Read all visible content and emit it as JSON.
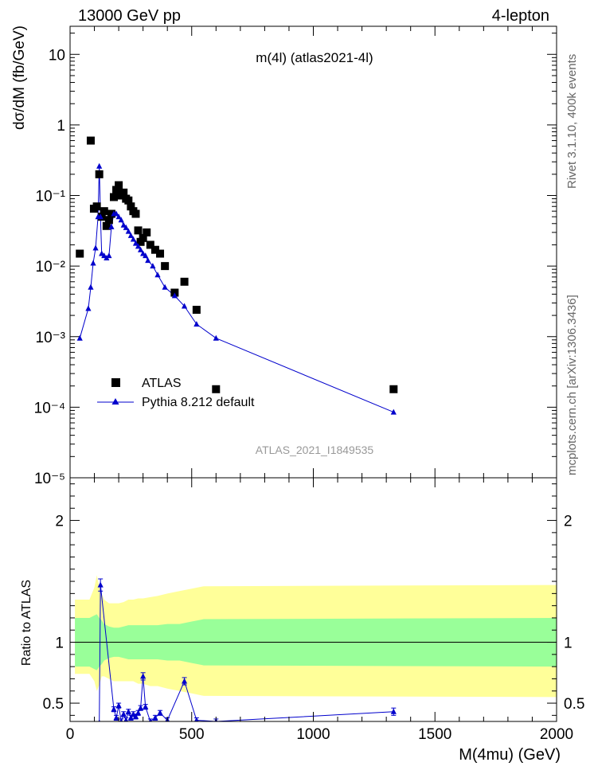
{
  "header": {
    "left": "13000 GeV pp",
    "right": "4-lepton",
    "side_top": "Rivet 3.1.10,  400k events",
    "side_bottom": "mcplots.cern.ch [arXiv:1306.3436]"
  },
  "colors": {
    "data": "#000000",
    "mc": "#0000cc",
    "band_inner": "#99ff99",
    "band_outer": "#ffff99"
  },
  "chart_data": [
    {
      "type": "scatter",
      "title": "m(4l) (atlas2021-4l)",
      "watermark": "ATLAS_2021_I1849535",
      "ylabel": "dσ/dM (fb/GeV)",
      "xlim": [
        0,
        2000
      ],
      "ylim": [
        1e-05,
        25
      ],
      "yscale": "log",
      "yticks": [
        {
          "v": 10,
          "label": "10"
        },
        {
          "v": 1,
          "label": "1"
        },
        {
          "v": 0.1,
          "label": "10⁻¹"
        },
        {
          "v": 0.01,
          "label": "10⁻²"
        },
        {
          "v": 0.001,
          "label": "10⁻³"
        },
        {
          "v": 0.0001,
          "label": "10⁻⁴"
        },
        {
          "v": 1e-05,
          "label": "10⁻⁵"
        }
      ],
      "legend": [
        "ATLAS",
        "Pythia 8.212 default"
      ],
      "legend_position": "bottom-left",
      "series": [
        {
          "name": "ATLAS",
          "marker": "square",
          "x": [
            40,
            85,
            98,
            110,
            120,
            130,
            140,
            150,
            160,
            170,
            180,
            190,
            200,
            210,
            220,
            230,
            240,
            250,
            260,
            270,
            280,
            290,
            300,
            315,
            330,
            350,
            370,
            390,
            430,
            470,
            520,
            600,
            1330
          ],
          "y": [
            0.015,
            0.6,
            0.065,
            0.07,
            0.2,
            0.05,
            0.06,
            0.037,
            0.045,
            0.055,
            0.095,
            0.12,
            0.14,
            0.1,
            0.11,
            0.09,
            0.085,
            0.07,
            0.06,
            0.055,
            0.032,
            0.022,
            0.025,
            0.03,
            0.02,
            0.017,
            0.015,
            0.01,
            0.0042,
            0.006,
            0.0024,
            0.00018,
            0.00018
          ]
        },
        {
          "name": "Pythia 8.212 default",
          "marker": "triangle",
          "x": [
            40,
            75,
            85,
            95,
            105,
            115,
            120,
            125,
            130,
            140,
            150,
            160,
            170,
            180,
            190,
            200,
            210,
            220,
            230,
            240,
            250,
            260,
            270,
            280,
            290,
            300,
            310,
            320,
            340,
            360,
            390,
            430,
            470,
            520,
            600,
            1330
          ],
          "y": [
            0.00095,
            0.0025,
            0.005,
            0.011,
            0.018,
            0.05,
            0.26,
            0.05,
            0.015,
            0.014,
            0.013,
            0.014,
            0.036,
            0.055,
            0.055,
            0.05,
            0.045,
            0.038,
            0.035,
            0.031,
            0.027,
            0.024,
            0.021,
            0.019,
            0.017,
            0.015,
            0.014,
            0.012,
            0.01,
            0.0075,
            0.005,
            0.0038,
            0.0027,
            0.0015,
            0.00095,
            8.5e-05
          ]
        }
      ]
    },
    {
      "type": "line",
      "ylabel": "Ratio to ATLAS",
      "xlabel": "M(4mu) (GeV)",
      "xlim": [
        0,
        2000
      ],
      "ylim": [
        0.35,
        2.35
      ],
      "xticks": [
        0,
        500,
        1000,
        1500,
        2000
      ],
      "yticks": [
        0.5,
        1,
        2
      ],
      "reference_line": 1,
      "uncertainty_bands": {
        "x": [
          20,
          80,
          100,
          110,
          120,
          130,
          140,
          160,
          180,
          200,
          220,
          240,
          260,
          280,
          300,
          330,
          360,
          400,
          450,
          500,
          550,
          2000
        ],
        "inner_low": [
          0.8,
          0.8,
          0.78,
          0.77,
          0.8,
          0.82,
          0.85,
          0.87,
          0.88,
          0.88,
          0.87,
          0.86,
          0.86,
          0.86,
          0.86,
          0.86,
          0.86,
          0.85,
          0.85,
          0.83,
          0.81,
          0.8
        ],
        "inner_high": [
          1.2,
          1.2,
          1.22,
          1.23,
          1.2,
          1.18,
          1.15,
          1.13,
          1.12,
          1.12,
          1.13,
          1.14,
          1.14,
          1.14,
          1.14,
          1.14,
          1.14,
          1.15,
          1.15,
          1.17,
          1.19,
          1.2
        ],
        "outer_low": [
          0.74,
          0.74,
          0.68,
          0.6,
          0.65,
          0.72,
          0.72,
          0.7,
          0.68,
          0.68,
          0.68,
          0.68,
          0.68,
          0.66,
          0.66,
          0.64,
          0.64,
          0.62,
          0.6,
          0.58,
          0.56,
          0.55
        ],
        "outer_high": [
          1.35,
          1.35,
          1.45,
          1.55,
          1.45,
          1.4,
          1.35,
          1.32,
          1.32,
          1.32,
          1.33,
          1.35,
          1.35,
          1.36,
          1.36,
          1.37,
          1.38,
          1.4,
          1.42,
          1.44,
          1.46,
          1.47
        ]
      },
      "series": [
        {
          "name": "Pythia 8.212 default",
          "x": [
            120,
            125,
            180,
            190,
            200,
            210,
            220,
            230,
            240,
            250,
            260,
            270,
            280,
            290,
            300,
            310,
            330,
            350,
            370,
            400,
            470,
            520,
            600,
            1330
          ],
          "y": [
            0.34,
            1.47,
            0.45,
            0.38,
            0.48,
            0.35,
            0.41,
            0.36,
            0.43,
            0.38,
            0.41,
            0.39,
            0.42,
            0.46,
            0.72,
            0.47,
            0.35,
            0.38,
            0.42,
            0.36,
            0.68,
            0.36,
            0.35,
            0.43
          ],
          "yerr": [
            0.0,
            0.05,
            0.02,
            0.02,
            0.02,
            0.02,
            0.02,
            0.02,
            0.02,
            0.02,
            0.02,
            0.02,
            0.02,
            0.02,
            0.03,
            0.02,
            0.02,
            0.02,
            0.02,
            0.02,
            0.03,
            0.02,
            0.02,
            0.03
          ]
        }
      ]
    }
  ]
}
